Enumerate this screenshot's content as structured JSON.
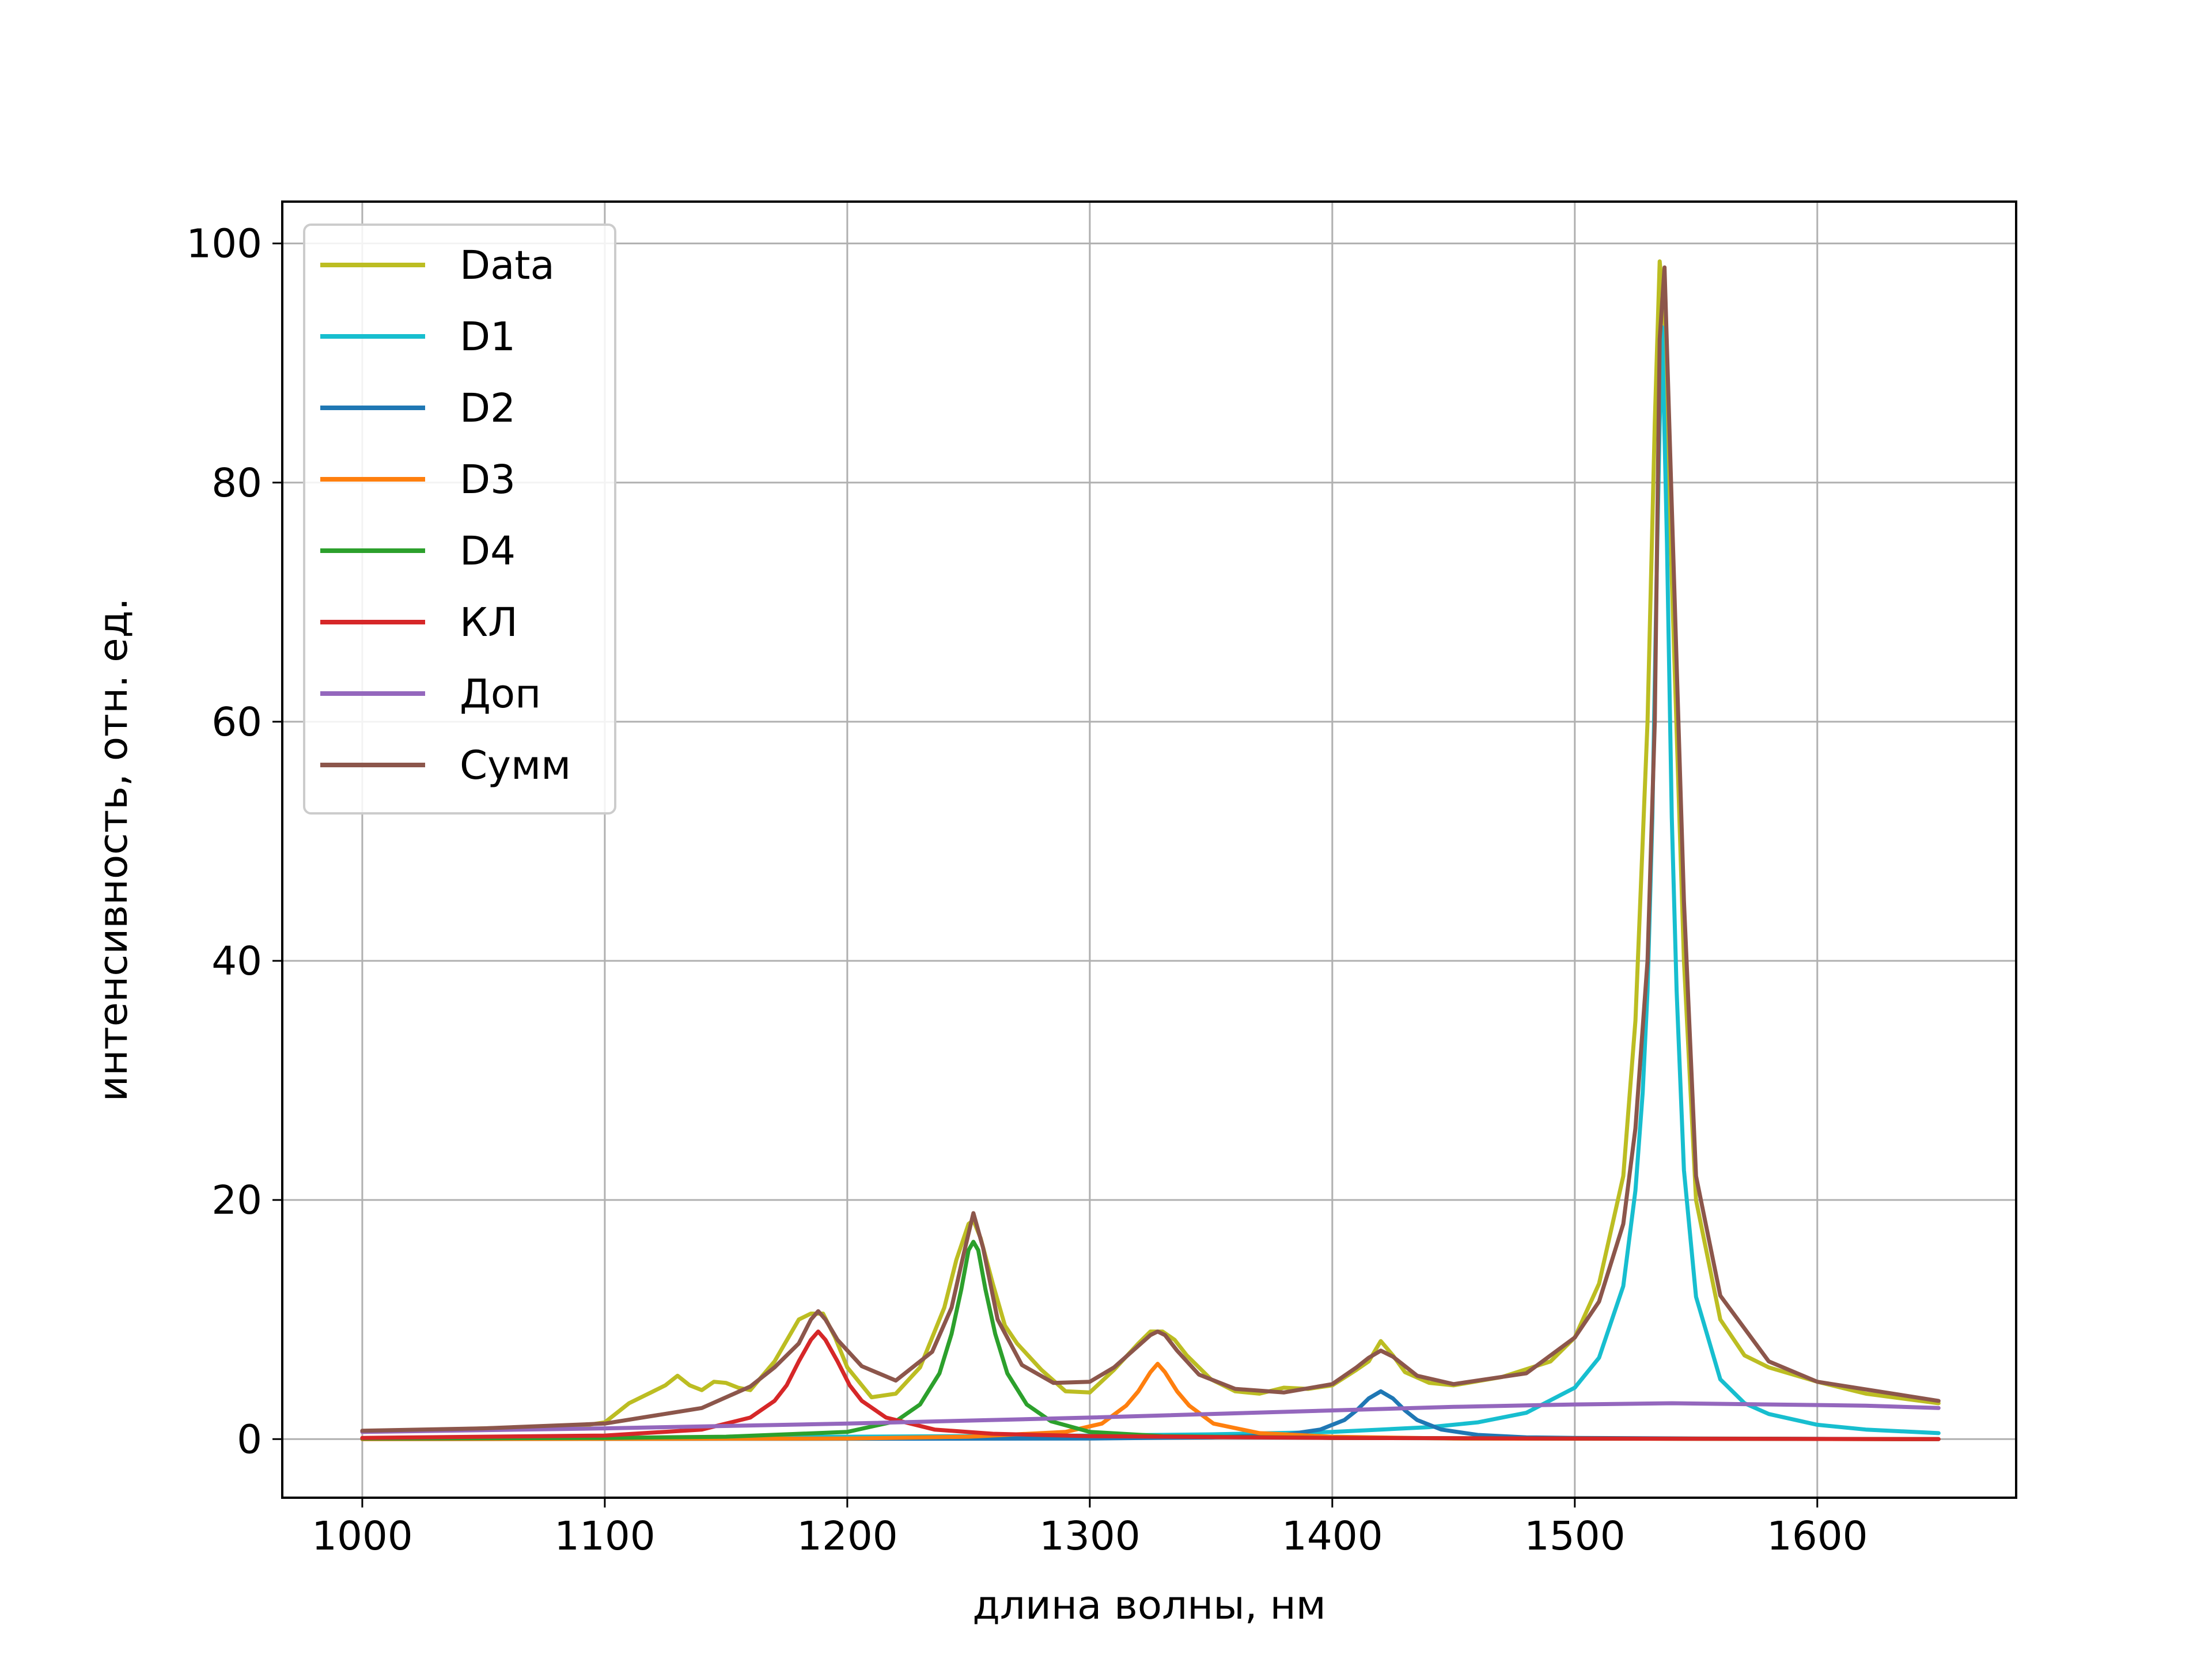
{
  "chart_data": {
    "type": "line",
    "title": "",
    "xlabel": "длина волны, нм",
    "ylabel": "интенсивность, отн. ед.",
    "xlim": [
      967,
      1682
    ],
    "ylim": [
      -4.9,
      103.5
    ],
    "xticks": [
      1000,
      1100,
      1200,
      1300,
      1400,
      1500,
      1600
    ],
    "yticks": [
      0,
      20,
      40,
      60,
      80,
      100
    ],
    "grid": true,
    "legend_position": "upper-left",
    "series": [
      {
        "name": "Data",
        "color": "#bcbd22",
        "x": [
          1000,
          1050,
          1090,
          1100,
          1105,
          1110,
          1120,
          1125,
          1130,
          1135,
          1140,
          1145,
          1150,
          1155,
          1160,
          1170,
          1180,
          1185,
          1190,
          1195,
          1200,
          1210,
          1220,
          1230,
          1240,
          1245,
          1250,
          1252,
          1255,
          1260,
          1265,
          1270,
          1280,
          1290,
          1300,
          1310,
          1320,
          1325,
          1330,
          1335,
          1340,
          1350,
          1360,
          1370,
          1380,
          1390,
          1400,
          1410,
          1415,
          1420,
          1425,
          1430,
          1440,
          1450,
          1470,
          1490,
          1500,
          1510,
          1520,
          1525,
          1530,
          1533,
          1535,
          1537,
          1540,
          1545,
          1550,
          1560,
          1570,
          1580,
          1600,
          1620,
          1650
        ],
        "y": [
          0.6,
          0.9,
          1.1,
          1.4,
          2.2,
          3.0,
          4.0,
          4.5,
          5.3,
          4.5,
          4.1,
          4.8,
          4.7,
          4.3,
          4.1,
          6.5,
          10.0,
          10.5,
          10.5,
          8.5,
          6.0,
          3.5,
          3.8,
          6.0,
          11.0,
          15.0,
          18.0,
          18.3,
          16.8,
          13.0,
          9.5,
          8.0,
          5.8,
          4.0,
          3.9,
          5.8,
          8.0,
          9.0,
          9.0,
          8.3,
          7.0,
          5.0,
          4.0,
          3.8,
          4.3,
          4.2,
          4.5,
          5.8,
          6.5,
          8.2,
          7.0,
          5.6,
          4.7,
          4.5,
          5.2,
          6.5,
          8.5,
          13.0,
          22.0,
          35.0,
          60.0,
          85.0,
          98.5,
          94.0,
          72.0,
          40.0,
          20.0,
          10.0,
          7.0,
          6.0,
          4.8,
          3.8,
          3.0
        ]
      },
      {
        "name": "D1",
        "color": "#17becf",
        "x": [
          1000,
          1100,
          1200,
          1300,
          1350,
          1400,
          1420,
          1440,
          1460,
          1480,
          1500,
          1510,
          1520,
          1525,
          1528,
          1530,
          1532,
          1534,
          1535,
          1536,
          1538,
          1540,
          1542,
          1545,
          1550,
          1560,
          1570,
          1580,
          1600,
          1620,
          1650
        ],
        "y": [
          0.05,
          0.1,
          0.2,
          0.3,
          0.4,
          0.6,
          0.8,
          1.0,
          1.4,
          2.2,
          4.3,
          6.8,
          12.8,
          20.8,
          29.0,
          37.5,
          52.0,
          75.0,
          85.0,
          93.0,
          75.0,
          52.0,
          37.5,
          22.5,
          11.9,
          5.0,
          3.0,
          2.1,
          1.2,
          0.8,
          0.5
        ]
      },
      {
        "name": "D2",
        "color": "#1f77b4",
        "x": [
          1000,
          1300,
          1350,
          1380,
          1395,
          1405,
          1410,
          1415,
          1420,
          1425,
          1430,
          1435,
          1445,
          1460,
          1480,
          1500,
          1550,
          1650
        ],
        "y": [
          0.0,
          0.05,
          0.15,
          0.35,
          0.8,
          1.6,
          2.4,
          3.4,
          4.0,
          3.4,
          2.4,
          1.6,
          0.8,
          0.35,
          0.15,
          0.1,
          0.05,
          0.0
        ],
        "note_color_only": ""
      },
      {
        "name": "D3",
        "color": "#ff7f0e",
        "x": [
          1000,
          1200,
          1250,
          1290,
          1305,
          1315,
          1320,
          1325,
          1328,
          1331,
          1336,
          1341,
          1351,
          1370,
          1400,
          1450,
          1650
        ],
        "y": [
          0.0,
          0.05,
          0.2,
          0.6,
          1.3,
          2.8,
          4.0,
          5.6,
          6.3,
          5.6,
          4.0,
          2.8,
          1.3,
          0.5,
          0.2,
          0.05,
          0.0
        ]
      },
      {
        "name": "D4",
        "color": "#2ca02c",
        "x": [
          1000,
          1100,
          1150,
          1200,
          1220,
          1230,
          1238,
          1243,
          1247,
          1250,
          1252,
          1254,
          1257,
          1261,
          1266,
          1274,
          1284,
          1300,
          1330,
          1400,
          1500,
          1650
        ],
        "y": [
          0.05,
          0.1,
          0.2,
          0.6,
          1.5,
          2.9,
          5.5,
          8.8,
          12.5,
          15.8,
          16.5,
          15.8,
          12.5,
          8.8,
          5.5,
          2.9,
          1.5,
          0.6,
          0.25,
          0.1,
          0.05,
          0.0
        ]
      },
      {
        "name": "КЛ",
        "color": "#d62728",
        "x": [
          1000,
          1100,
          1140,
          1160,
          1170,
          1175,
          1180,
          1185,
          1188,
          1191,
          1196,
          1201,
          1206,
          1216,
          1236,
          1260,
          1300,
          1400,
          1500,
          1650
        ],
        "y": [
          0.1,
          0.3,
          0.8,
          1.8,
          3.2,
          4.5,
          6.5,
          8.3,
          9.0,
          8.3,
          6.5,
          4.5,
          3.2,
          1.8,
          0.8,
          0.45,
          0.25,
          0.1,
          0.05,
          0.0
        ]
      },
      {
        "name": "Доп",
        "color": "#9467bd",
        "x": [
          1000,
          1100,
          1200,
          1300,
          1400,
          1450,
          1500,
          1540,
          1580,
          1620,
          1650
        ],
        "y": [
          0.6,
          0.9,
          1.3,
          1.8,
          2.4,
          2.7,
          2.9,
          3.0,
          2.9,
          2.8,
          2.6
        ]
      },
      {
        "name": "Сумм",
        "color": "#8c564b",
        "x": [
          1000,
          1050,
          1100,
          1140,
          1160,
          1170,
          1180,
          1185,
          1188,
          1191,
          1196,
          1206,
          1220,
          1235,
          1243,
          1248,
          1252,
          1256,
          1262,
          1272,
          1285,
          1300,
          1310,
          1320,
          1325,
          1328,
          1331,
          1336,
          1345,
          1360,
          1380,
          1400,
          1410,
          1415,
          1420,
          1425,
          1435,
          1450,
          1480,
          1500,
          1510,
          1520,
          1525,
          1530,
          1533,
          1535,
          1537,
          1540,
          1545,
          1550,
          1560,
          1580,
          1600,
          1650
        ],
        "y": [
          0.7,
          0.9,
          1.3,
          2.6,
          4.4,
          6.0,
          8.0,
          10.0,
          10.7,
          10.0,
          8.3,
          6.1,
          4.9,
          7.3,
          11.0,
          15.5,
          18.9,
          16.0,
          10.0,
          6.2,
          4.7,
          4.8,
          6.0,
          7.8,
          8.7,
          9.0,
          8.7,
          7.4,
          5.4,
          4.2,
          3.9,
          4.6,
          6.0,
          6.8,
          7.4,
          6.9,
          5.3,
          4.6,
          5.5,
          8.5,
          11.5,
          18.0,
          26.0,
          40.0,
          60.0,
          92.0,
          98.0,
          78.0,
          45.0,
          22.0,
          12.0,
          6.5,
          4.8,
          3.2
        ]
      }
    ]
  }
}
